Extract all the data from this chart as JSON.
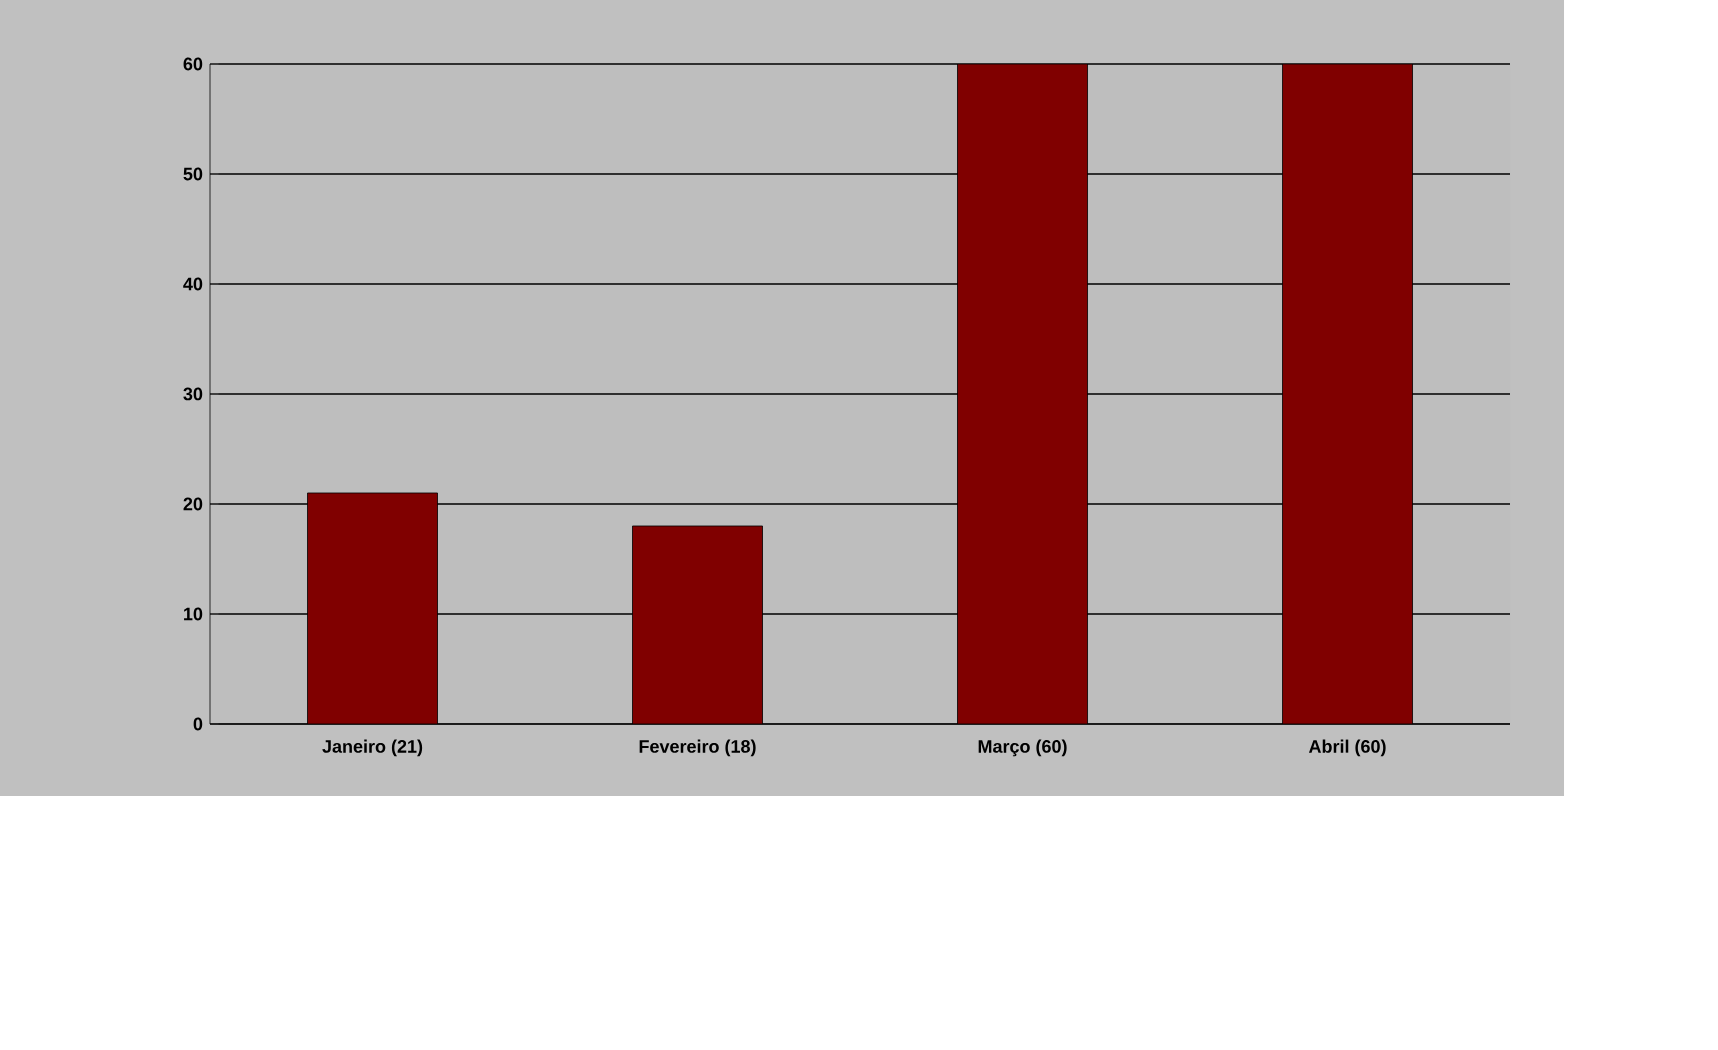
{
  "chart_data": {
    "type": "bar",
    "categories": [
      "Janeiro (21)",
      "Fevereiro (18)",
      "Março (60)",
      "Abril (60)"
    ],
    "values": [
      21,
      18,
      60,
      60
    ],
    "color": "#800000",
    "ylim": [
      0,
      60
    ],
    "yticks": [
      0,
      10,
      20,
      30,
      40,
      50,
      60
    ],
    "grid": "y"
  }
}
